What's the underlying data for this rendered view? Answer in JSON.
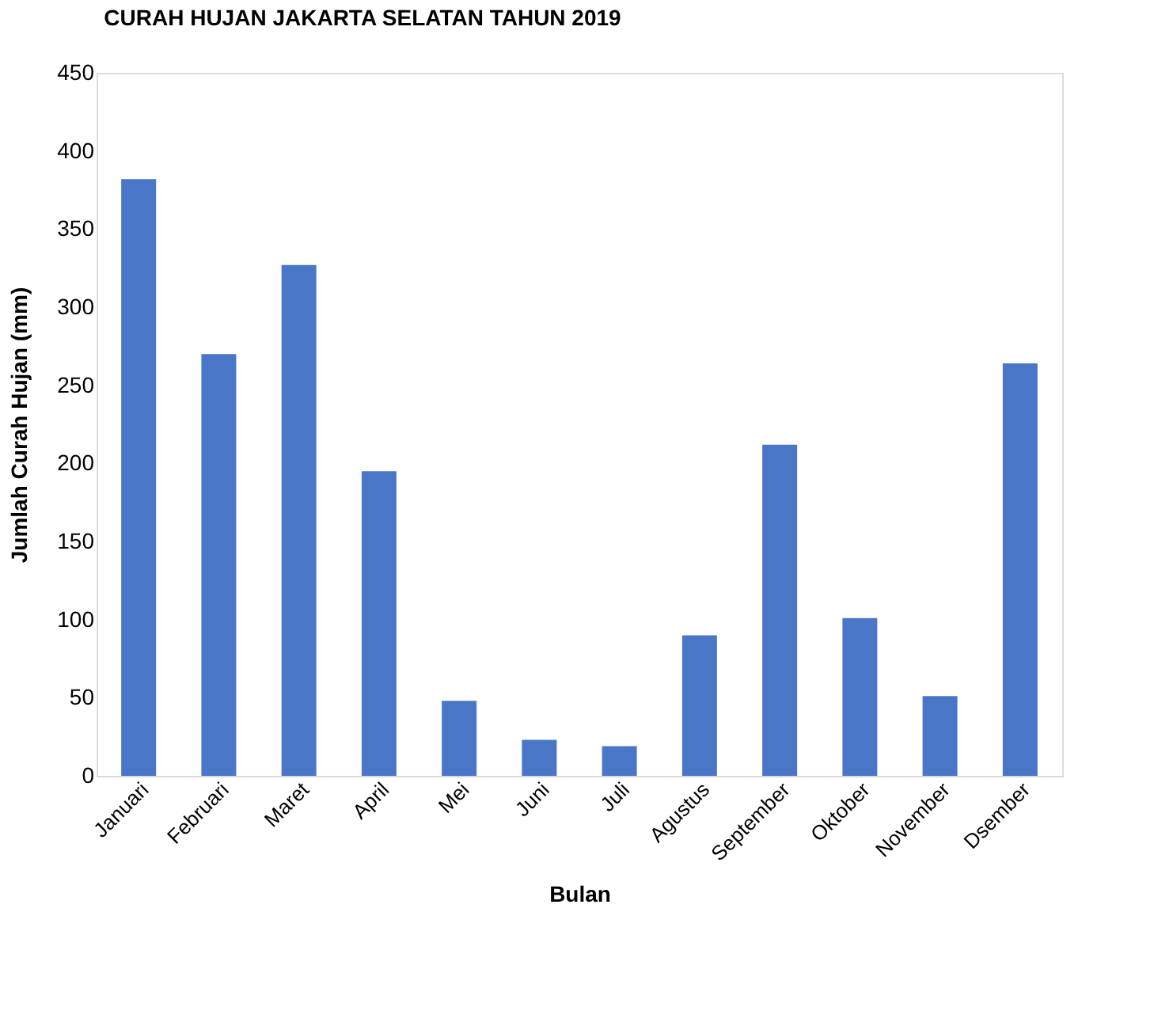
{
  "chart_data": {
    "type": "bar",
    "title": "CURAH HUJAN JAKARTA SELATAN TAHUN 2019",
    "xlabel": "Bulan",
    "ylabel": "Jumlah Curah Hujan (mm)",
    "categories": [
      "Januari",
      "Februari",
      "Maret",
      "April",
      "Mei",
      "Juni",
      "Juli",
      "Agustus",
      "September",
      "Oktober",
      "November",
      "Dsember"
    ],
    "values": [
      382,
      270,
      327,
      195,
      48,
      23,
      19,
      90,
      212,
      101,
      51,
      264
    ],
    "color": "#4a76c8",
    "ylim": [
      0,
      450
    ],
    "yticks": [
      0,
      50,
      100,
      150,
      200,
      250,
      300,
      350,
      400,
      450
    ],
    "grid": false,
    "legend": false
  }
}
